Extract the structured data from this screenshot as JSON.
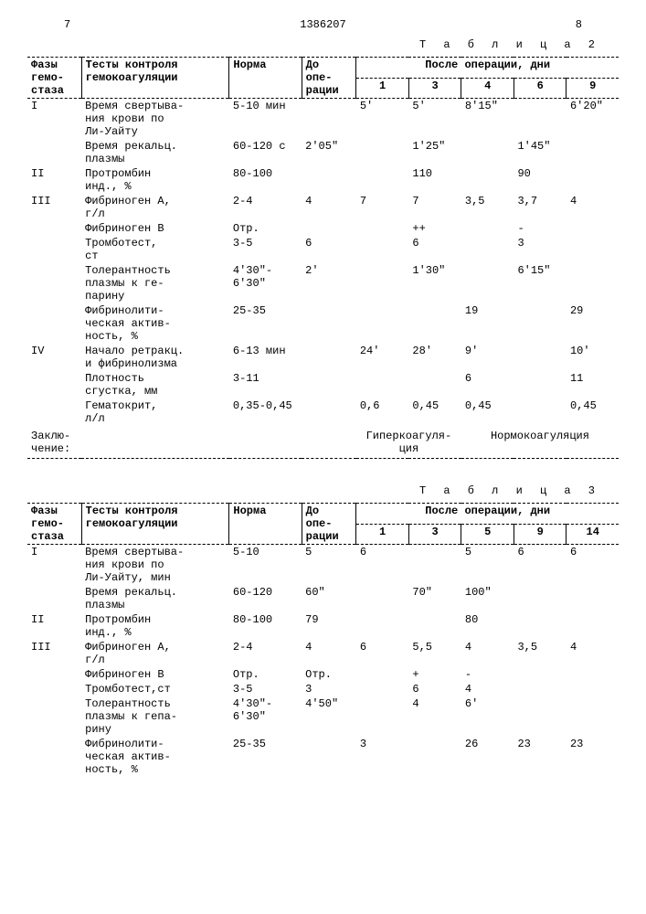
{
  "page": {
    "left_num": "7",
    "doc_num": "1386207",
    "right_num": "8"
  },
  "table2": {
    "caption": "Т а б л и ц а  2",
    "headers": {
      "phase": "Фазы\nгемо-\nстаза",
      "test": "Тесты контроля\nгемокоагуляции",
      "norm": "Норма",
      "preop": "До\nопе-\nрации",
      "postop_title": "После операции, дни",
      "days": [
        "1",
        "3",
        "4",
        "6",
        "9"
      ]
    },
    "rows": [
      {
        "phase": "I",
        "test": "Время свертыва-\nния крови по\nЛи-Уайту",
        "norm": "5-10 мин",
        "preop": "",
        "d": [
          "5'",
          "5'",
          "8'15\"",
          "",
          "6'20\""
        ]
      },
      {
        "phase": "",
        "test": "Время рекальц.\nплазмы",
        "norm": "60-120 с",
        "preop": "2'05\"",
        "d": [
          "",
          "1'25\"",
          "",
          "1'45\"",
          ""
        ]
      },
      {
        "phase": "II",
        "test": "Протромбин\nинд., %",
        "norm": "80-100",
        "preop": "",
        "d": [
          "",
          "110",
          "",
          "90",
          ""
        ]
      },
      {
        "phase": "III",
        "test": "Фибриноген A,\nг/л",
        "norm": "2-4",
        "preop": "4",
        "d": [
          "7",
          "7",
          "3,5",
          "3,7",
          "4"
        ]
      },
      {
        "phase": "",
        "test": "Фибриноген B",
        "norm": "Отр.",
        "preop": "",
        "d": [
          "",
          "++",
          "",
          "-",
          ""
        ]
      },
      {
        "phase": "",
        "test": "Тромботест,\nст",
        "norm": "3-5",
        "preop": "6",
        "d": [
          "",
          "6",
          "",
          "3",
          ""
        ]
      },
      {
        "phase": "",
        "test": "Толерантность\nплазмы к ге-\nпарину",
        "norm": "4'30\"-\n6'30\"",
        "preop": "2'",
        "d": [
          "",
          "1'30\"",
          "",
          "6'15\"",
          ""
        ]
      },
      {
        "phase": "",
        "test": "Фибринолити-\nческая актив-\nность, %",
        "norm": "25-35",
        "preop": "",
        "d": [
          "",
          "",
          "19",
          "",
          "29"
        ]
      },
      {
        "phase": "IV",
        "test": "Начало ретракц.\nи фибринолизма",
        "norm": "6-13 мин",
        "preop": "",
        "d": [
          "24'",
          "28'",
          "9'",
          "",
          "10'"
        ]
      },
      {
        "phase": "",
        "test": "Плотность\nсгустка, мм",
        "norm": "3-11",
        "preop": "",
        "d": [
          "",
          "",
          "6",
          "",
          "11"
        ]
      },
      {
        "phase": "",
        "test": "Гематокрит,\nл/л",
        "norm": "0,35-0,45",
        "preop": "",
        "d": [
          "0,6",
          "0,45",
          "0,45",
          "",
          "0,45"
        ]
      }
    ],
    "conclusion": {
      "label": "Заклю-\nчение:",
      "groups": [
        {
          "span": [
            0,
            2
          ],
          "text": "Гиперкоагуля-\nция"
        },
        {
          "span": [
            2,
            5
          ],
          "text": "Нормокоагуляция"
        }
      ]
    }
  },
  "table3": {
    "caption": "Т а б л и ц а  3",
    "headers": {
      "phase": "Фазы\nгемо-\nстаза",
      "test": "Тесты контроля\nгемокоагуляции",
      "norm": "Норма",
      "preop": "До\nопе-\nрации",
      "postop_title": "После операции, дни",
      "days": [
        "1",
        "3",
        "5",
        "9",
        "14"
      ]
    },
    "rows": [
      {
        "phase": "I",
        "test": "Время свертыва-\nния крови по\nЛи-Уайту, мин",
        "norm": "5-10",
        "preop": "5",
        "d": [
          "6",
          "",
          "5",
          "6",
          "6"
        ]
      },
      {
        "phase": "",
        "test": "Время рекальц.\nплазмы",
        "norm": "60-120",
        "preop": "60\"",
        "d": [
          "",
          "70\"",
          "100\"",
          "",
          ""
        ]
      },
      {
        "phase": "II",
        "test": "Протромбин\nинд., %",
        "norm": "80-100",
        "preop": "79",
        "d": [
          "",
          "",
          "80",
          "",
          ""
        ]
      },
      {
        "phase": "III",
        "test": "Фибриноген A,\nг/л",
        "norm": "2-4",
        "preop": "4",
        "d": [
          "6",
          "5,5",
          "4",
          "3,5",
          "4"
        ]
      },
      {
        "phase": "",
        "test": "Фибриноген B",
        "norm": "Отр.",
        "preop": "Отр.",
        "d": [
          "",
          "+",
          "-",
          "",
          ""
        ]
      },
      {
        "phase": "",
        "test": "Тромботест,ст",
        "norm": "3-5",
        "preop": "3",
        "d": [
          "",
          "6",
          "4",
          "",
          ""
        ]
      },
      {
        "phase": "",
        "test": "Толерантность\nплазмы к гепа-\nрину",
        "norm": "4'30\"-\n6'30\"",
        "preop": "4'50\"",
        "d": [
          "",
          "4",
          "6'",
          "",
          ""
        ]
      },
      {
        "phase": "",
        "test": "Фибринолити-\nческая актив-\nность, %",
        "norm": "25-35",
        "preop": "",
        "d": [
          "3",
          "",
          "26",
          "23",
          "23"
        ]
      }
    ]
  },
  "style": {
    "font_family": "Courier New, monospace",
    "font_size_pt": 9,
    "text_color": "#000000",
    "background": "#ffffff",
    "border_style": "dashed"
  }
}
